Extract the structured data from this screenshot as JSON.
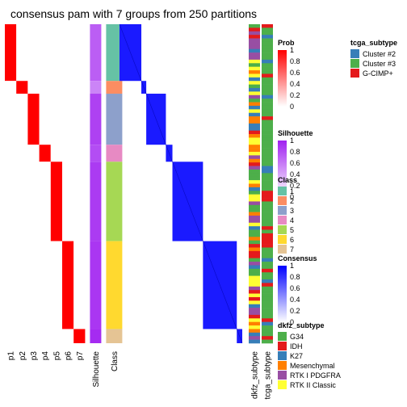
{
  "chart_data": {
    "type": "heatmap",
    "title": "consensus pam with 7 groups from 250 partitions",
    "prob_columns": [
      "p1",
      "p2",
      "p3",
      "p4",
      "p5",
      "p6",
      "p7"
    ],
    "annotation_columns": [
      "Silhouette",
      "Class"
    ],
    "subtype_columns": [
      "dkfz_subtype",
      "tcga_subtype"
    ],
    "groups": [
      {
        "class": "1",
        "prob_column": "p1",
        "sample_share": 0.2,
        "silhouette": 0.72
      },
      {
        "class": "2",
        "prob_column": "p2",
        "sample_share": 0.045,
        "silhouette": 0.55
      },
      {
        "class": "3",
        "prob_column": "p3",
        "sample_share": 0.18,
        "silhouette": 0.85
      },
      {
        "class": "4",
        "prob_column": "p4",
        "sample_share": 0.06,
        "silhouette": 0.8
      },
      {
        "class": "5",
        "prob_column": "p5",
        "sample_share": 0.28,
        "silhouette": 0.88
      },
      {
        "class": "6",
        "prob_column": "p6",
        "sample_share": 0.31,
        "silhouette": 0.9
      },
      {
        "class": "7",
        "prob_column": "p7",
        "sample_share": 0.05,
        "silhouette": 0.95
      }
    ],
    "legends": {
      "prob": {
        "title": "Prob",
        "ticks": [
          "1",
          "0.8",
          "0.6",
          "0.4",
          "0.2",
          "0"
        ],
        "low_color": "#ffffff",
        "high_color": "#ff0000"
      },
      "silhouette": {
        "title": "Silhouette",
        "ticks": [
          "1",
          "0.8",
          "0.6",
          "0.4",
          "0.2",
          "0"
        ],
        "low_color": "#ffffff",
        "high_color": "#a020f0"
      },
      "class": {
        "title": "Class",
        "items": [
          {
            "label": "1",
            "color": "#66c2a5"
          },
          {
            "label": "2",
            "color": "#fc8d62"
          },
          {
            "label": "3",
            "color": "#8da0cb"
          },
          {
            "label": "4",
            "color": "#e78ac3"
          },
          {
            "label": "5",
            "color": "#a6d854"
          },
          {
            "label": "6",
            "color": "#ffd92f"
          },
          {
            "label": "7",
            "color": "#e5c494"
          }
        ]
      },
      "consensus": {
        "title": "Consensus",
        "ticks": [
          "1",
          "0.8",
          "0.6",
          "0.4",
          "0.2",
          "0"
        ],
        "low_color": "#ffffff",
        "high_color": "#0000ff"
      },
      "dkfz_subtype": {
        "title": "dkfz_subtype",
        "items": [
          {
            "label": "G34",
            "color": "#4daf4a"
          },
          {
            "label": "IDH",
            "color": "#e41a1c"
          },
          {
            "label": "K27",
            "color": "#377eb8"
          },
          {
            "label": "Mesenchymal",
            "color": "#ff7f00"
          },
          {
            "label": "RTK I PDGFRA",
            "color": "#984ea3"
          },
          {
            "label": "RTK II Classic",
            "color": "#ffff33"
          }
        ]
      },
      "tcga_subtype": {
        "title": "tcga_subtype",
        "items": [
          {
            "label": "Cluster #2",
            "color": "#377eb8"
          },
          {
            "label": "Cluster #3",
            "color": "#4daf4a"
          },
          {
            "label": "G-CIMP+",
            "color": "#e41a1c"
          }
        ]
      }
    }
  }
}
